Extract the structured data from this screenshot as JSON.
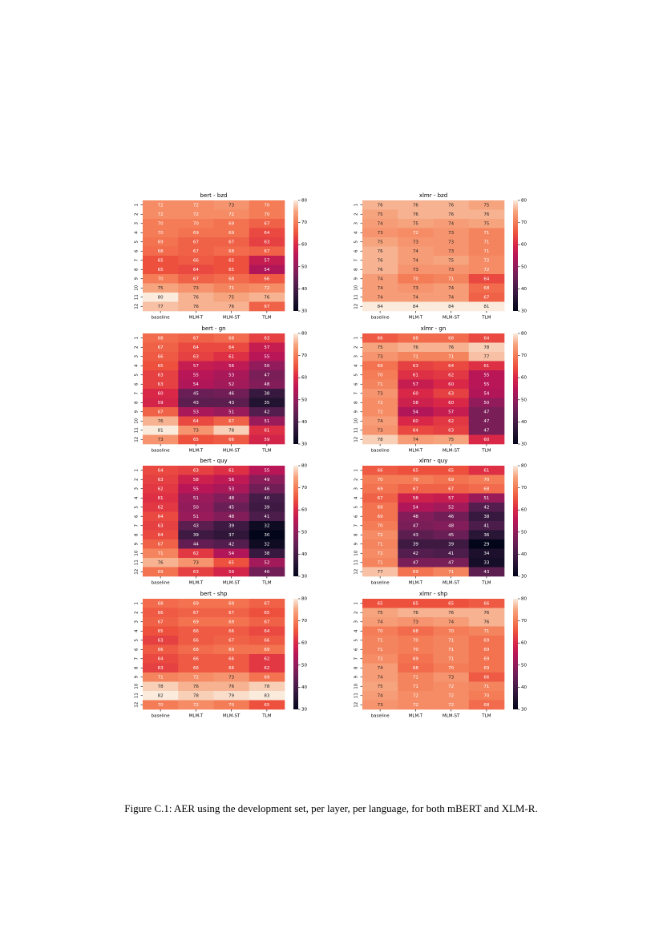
{
  "chart_data": [
    {
      "type": "heatmap",
      "title": "bert - bzd",
      "categories": [
        "baseline",
        "MLM-T",
        "MLM-ST",
        "TLM"
      ],
      "rows": [
        "1",
        "2",
        "3",
        "4",
        "5",
        "6",
        "7",
        "8",
        "9",
        "10",
        "11",
        "12"
      ],
      "colormap": "rocket",
      "zlim": [
        30,
        80
      ],
      "zticks": [
        30,
        40,
        50,
        60,
        70,
        80
      ],
      "values": [
        [
          72,
          72,
          73,
          70
        ],
        [
          72,
          72,
          72,
          70
        ],
        [
          70,
          70,
          69,
          67
        ],
        [
          70,
          69,
          69,
          64
        ],
        [
          69,
          67,
          67,
          63
        ],
        [
          68,
          67,
          68,
          67
        ],
        [
          65,
          66,
          65,
          57
        ],
        [
          65,
          64,
          65,
          54
        ],
        [
          70,
          67,
          68,
          66
        ],
        [
          75,
          73,
          71,
          72
        ],
        [
          80,
          76,
          75,
          76
        ],
        [
          77,
          76,
          76,
          67
        ]
      ]
    },
    {
      "type": "heatmap",
      "title": "xlmr - bzd",
      "categories": [
        "baseline",
        "MLM-T",
        "MLM-ST",
        "TLM"
      ],
      "rows": [
        "1",
        "2",
        "3",
        "4",
        "5",
        "6",
        "7",
        "8",
        "9",
        "10",
        "11",
        "12"
      ],
      "colormap": "rocket",
      "zlim": [
        30,
        80
      ],
      "zticks": [
        30,
        40,
        50,
        60,
        70,
        80
      ],
      "values": [
        [
          76,
          76,
          76,
          75
        ],
        [
          75,
          76,
          76,
          76
        ],
        [
          74,
          75,
          74,
          75
        ],
        [
          73,
          72,
          73,
          71
        ],
        [
          75,
          73,
          73,
          71
        ],
        [
          76,
          74,
          73,
          71
        ],
        [
          76,
          74,
          75,
          72
        ],
        [
          76,
          73,
          73,
          72
        ],
        [
          74,
          70,
          71,
          64
        ],
        [
          74,
          73,
          74,
          68
        ],
        [
          74,
          74,
          74,
          67
        ],
        [
          84,
          84,
          84,
          81
        ]
      ]
    },
    {
      "type": "heatmap",
      "title": "bert - gn",
      "categories": [
        "baseline",
        "MLM-T",
        "MLM-ST",
        "TLM"
      ],
      "rows": [
        "1",
        "2",
        "3",
        "4",
        "5",
        "6",
        "7",
        "8",
        "9",
        "10",
        "11",
        "12"
      ],
      "colormap": "rocket",
      "zlim": [
        30,
        80
      ],
      "zticks": [
        30,
        40,
        50,
        60,
        70,
        80
      ],
      "values": [
        [
          68,
          67,
          68,
          63
        ],
        [
          67,
          64,
          64,
          57
        ],
        [
          66,
          63,
          61,
          55
        ],
        [
          65,
          57,
          56,
          50
        ],
        [
          63,
          55,
          53,
          47
        ],
        [
          63,
          54,
          52,
          48
        ],
        [
          60,
          45,
          46,
          38
        ],
        [
          59,
          43,
          43,
          35
        ],
        [
          67,
          53,
          51,
          42
        ],
        [
          76,
          64,
          67,
          51
        ],
        [
          81,
          73,
          78,
          61
        ],
        [
          73,
          65,
          66,
          59
        ]
      ]
    },
    {
      "type": "heatmap",
      "title": "xlmr - gn",
      "categories": [
        "baseline",
        "MLM-T",
        "MLM-ST",
        "TLM"
      ],
      "rows": [
        "1",
        "2",
        "3",
        "4",
        "5",
        "6",
        "7",
        "8",
        "9",
        "10",
        "11",
        "12"
      ],
      "colormap": "rocket",
      "zlim": [
        30,
        80
      ],
      "zticks": [
        30,
        40,
        50,
        60,
        70,
        80
      ],
      "values": [
        [
          66,
          68,
          68,
          64
        ],
        [
          75,
          76,
          76,
          78
        ],
        [
          73,
          71,
          71,
          77
        ],
        [
          69,
          63,
          64,
          61
        ],
        [
          70,
          61,
          62,
          55
        ],
        [
          71,
          57,
          60,
          55
        ],
        [
          73,
          60,
          63,
          54
        ],
        [
          72,
          58,
          60,
          50
        ],
        [
          72,
          54,
          57,
          47
        ],
        [
          74,
          60,
          62,
          47
        ],
        [
          73,
          64,
          63,
          47
        ],
        [
          78,
          74,
          75,
          60
        ]
      ]
    },
    {
      "type": "heatmap",
      "title": "bert - quy",
      "categories": [
        "baseline",
        "MLM-T",
        "MLM-ST",
        "TLM"
      ],
      "rows": [
        "1",
        "2",
        "3",
        "4",
        "5",
        "6",
        "7",
        "8",
        "9",
        "10",
        "11",
        "12"
      ],
      "colormap": "rocket",
      "zlim": [
        30,
        80
      ],
      "zticks": [
        30,
        40,
        50,
        60,
        70,
        80
      ],
      "values": [
        [
          64,
          63,
          61,
          55
        ],
        [
          63,
          58,
          56,
          49
        ],
        [
          62,
          55,
          53,
          46
        ],
        [
          61,
          51,
          48,
          40
        ],
        [
          62,
          50,
          45,
          39
        ],
        [
          64,
          51,
          48,
          41
        ],
        [
          63,
          43,
          39,
          32
        ],
        [
          64,
          39,
          37,
          30
        ],
        [
          67,
          44,
          42,
          32
        ],
        [
          71,
          62,
          54,
          38
        ],
        [
          76,
          73,
          65,
          52
        ],
        [
          69,
          63,
          59,
          46
        ]
      ]
    },
    {
      "type": "heatmap",
      "title": "xlmr - quy",
      "categories": [
        "baseline",
        "MLM-T",
        "MLM-ST",
        "TLM"
      ],
      "rows": [
        "1",
        "2",
        "3",
        "4",
        "5",
        "6",
        "7",
        "8",
        "9",
        "10",
        "11",
        "12"
      ],
      "colormap": "rocket",
      "zlim": [
        30,
        80
      ],
      "zticks": [
        30,
        40,
        50,
        60,
        70,
        80
      ],
      "values": [
        [
          66,
          65,
          65,
          61
        ],
        [
          70,
          70,
          69,
          70
        ],
        [
          69,
          67,
          67,
          68
        ],
        [
          67,
          58,
          57,
          51
        ],
        [
          69,
          54,
          52,
          42
        ],
        [
          69,
          48,
          46,
          38
        ],
        [
          70,
          47,
          48,
          41
        ],
        [
          72,
          43,
          45,
          36
        ],
        [
          71,
          39,
          39,
          29
        ],
        [
          72,
          42,
          41,
          34
        ],
        [
          71,
          47,
          47,
          33
        ],
        [
          77,
          69,
          71,
          43
        ]
      ]
    },
    {
      "type": "heatmap",
      "title": "bert - shp",
      "categories": [
        "baseline",
        "MLM-T",
        "MLM-ST",
        "TLM"
      ],
      "rows": [
        "1",
        "2",
        "3",
        "4",
        "5",
        "6",
        "7",
        "8",
        "9",
        "10",
        "11",
        "12"
      ],
      "colormap": "rocket",
      "zlim": [
        30,
        80
      ],
      "zticks": [
        30,
        40,
        50,
        60,
        70,
        80
      ],
      "values": [
        [
          68,
          69,
          69,
          67
        ],
        [
          66,
          67,
          67,
          65
        ],
        [
          67,
          69,
          69,
          67
        ],
        [
          65,
          66,
          66,
          64
        ],
        [
          63,
          66,
          67,
          66
        ],
        [
          66,
          68,
          69,
          69
        ],
        [
          64,
          66,
          66,
          62
        ],
        [
          63,
          66,
          66,
          62
        ],
        [
          71,
          72,
          73,
          69
        ],
        [
          78,
          76,
          76,
          78
        ],
        [
          82,
          78,
          79,
          83
        ],
        [
          70,
          72,
          70,
          65
        ]
      ]
    },
    {
      "type": "heatmap",
      "title": "xlmr - shp",
      "categories": [
        "baseline",
        "MLM-T",
        "MLM-ST",
        "TLM"
      ],
      "rows": [
        "1",
        "2",
        "3",
        "4",
        "5",
        "6",
        "7",
        "8",
        "9",
        "10",
        "11",
        "12"
      ],
      "colormap": "rocket",
      "zlim": [
        30,
        80
      ],
      "zticks": [
        30,
        40,
        50,
        60,
        70,
        80
      ],
      "values": [
        [
          65,
          65,
          65,
          66
        ],
        [
          75,
          76,
          76,
          76
        ],
        [
          74,
          73,
          74,
          76
        ],
        [
          70,
          68,
          70,
          71
        ],
        [
          71,
          70,
          71,
          69
        ],
        [
          71,
          70,
          71,
          69
        ],
        [
          72,
          69,
          71,
          69
        ],
        [
          74,
          68,
          70,
          69
        ],
        [
          74,
          71,
          73,
          66
        ],
        [
          75,
          71,
          72,
          71
        ],
        [
          74,
          72,
          72,
          70
        ],
        [
          73,
          72,
          72,
          68
        ]
      ]
    }
  ],
  "caption": "Figure C.1: AER using the development set, per layer, per language, for both mBERT and XLM-R."
}
